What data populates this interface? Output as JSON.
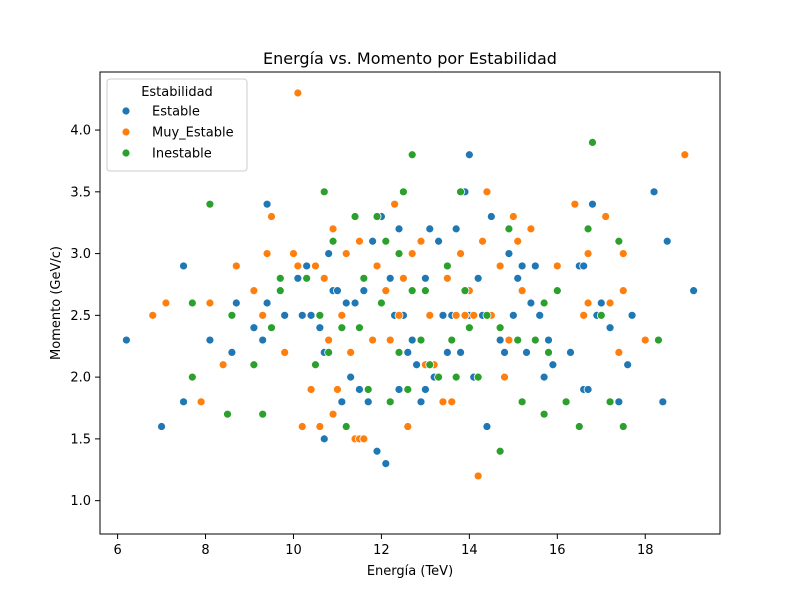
{
  "chart_data": {
    "type": "scatter",
    "title": "Energía vs. Momento por Estabilidad",
    "xlabel": "Energía (TeV)",
    "ylabel": "Momento (GeV/c)",
    "xlim": [
      5.6,
      19.7
    ],
    "ylim": [
      0.73,
      4.47
    ],
    "xticks": [
      6,
      8,
      10,
      12,
      14,
      16,
      18
    ],
    "yticks": [
      "1.0",
      "1.5",
      "2.0",
      "2.5",
      "3.0",
      "3.5",
      "4.0"
    ],
    "grid": false,
    "legend": {
      "title": "Estabilidad",
      "placement": "top-left"
    },
    "series": [
      {
        "name": "Estable",
        "color": "#1f77b4",
        "points": [
          [
            6.2,
            2.3
          ],
          [
            7.0,
            1.6
          ],
          [
            7.5,
            1.8
          ],
          [
            7.5,
            2.9
          ],
          [
            8.1,
            2.3
          ],
          [
            8.6,
            2.2
          ],
          [
            8.7,
            2.6
          ],
          [
            9.1,
            2.4
          ],
          [
            9.3,
            2.3
          ],
          [
            9.4,
            2.6
          ],
          [
            9.4,
            3.4
          ],
          [
            9.8,
            2.5
          ],
          [
            10.1,
            2.8
          ],
          [
            10.2,
            2.5
          ],
          [
            10.3,
            2.9
          ],
          [
            10.4,
            2.5
          ],
          [
            10.6,
            2.4
          ],
          [
            10.7,
            1.5
          ],
          [
            10.7,
            2.2
          ],
          [
            10.8,
            3.0
          ],
          [
            10.9,
            2.7
          ],
          [
            11.0,
            2.7
          ],
          [
            11.1,
            1.8
          ],
          [
            11.2,
            2.6
          ],
          [
            11.3,
            2.0
          ],
          [
            11.4,
            2.6
          ],
          [
            11.5,
            1.9
          ],
          [
            11.6,
            2.7
          ],
          [
            11.7,
            1.8
          ],
          [
            11.8,
            3.1
          ],
          [
            11.9,
            1.4
          ],
          [
            12.0,
            3.3
          ],
          [
            12.1,
            1.3
          ],
          [
            12.2,
            2.8
          ],
          [
            12.3,
            2.5
          ],
          [
            12.4,
            3.2
          ],
          [
            12.4,
            1.9
          ],
          [
            12.5,
            2.5
          ],
          [
            12.6,
            2.2
          ],
          [
            12.7,
            2.3
          ],
          [
            12.8,
            2.1
          ],
          [
            12.9,
            1.8
          ],
          [
            13.0,
            2.8
          ],
          [
            13.0,
            1.9
          ],
          [
            13.1,
            3.2
          ],
          [
            13.2,
            2.0
          ],
          [
            13.3,
            3.1
          ],
          [
            13.4,
            2.5
          ],
          [
            13.5,
            2.2
          ],
          [
            13.6,
            2.5
          ],
          [
            13.7,
            3.2
          ],
          [
            13.8,
            2.2
          ],
          [
            13.9,
            3.5
          ],
          [
            14.0,
            3.8
          ],
          [
            14.0,
            2.5
          ],
          [
            14.1,
            2.0
          ],
          [
            14.2,
            2.8
          ],
          [
            14.3,
            2.5
          ],
          [
            14.4,
            1.6
          ],
          [
            14.5,
            3.3
          ],
          [
            14.7,
            2.3
          ],
          [
            14.8,
            2.2
          ],
          [
            14.9,
            3.0
          ],
          [
            15.0,
            2.5
          ],
          [
            15.1,
            2.8
          ],
          [
            15.2,
            2.9
          ],
          [
            15.3,
            2.2
          ],
          [
            15.4,
            2.6
          ],
          [
            15.5,
            2.9
          ],
          [
            15.6,
            2.5
          ],
          [
            15.7,
            2.0
          ],
          [
            15.8,
            2.3
          ],
          [
            15.9,
            2.1
          ],
          [
            16.3,
            2.2
          ],
          [
            16.5,
            2.9
          ],
          [
            16.6,
            1.9
          ],
          [
            16.6,
            2.9
          ],
          [
            16.7,
            1.9
          ],
          [
            16.8,
            3.4
          ],
          [
            16.9,
            2.5
          ],
          [
            17.0,
            2.6
          ],
          [
            17.2,
            2.4
          ],
          [
            17.4,
            1.8
          ],
          [
            17.6,
            2.1
          ],
          [
            17.7,
            2.5
          ],
          [
            18.2,
            3.5
          ],
          [
            18.4,
            1.8
          ],
          [
            18.5,
            3.1
          ],
          [
            19.1,
            2.7
          ]
        ]
      },
      {
        "name": "Muy_Estable",
        "color": "#ff7f0e",
        "points": [
          [
            6.8,
            2.5
          ],
          [
            7.1,
            2.6
          ],
          [
            7.9,
            1.8
          ],
          [
            8.1,
            2.6
          ],
          [
            8.4,
            2.1
          ],
          [
            8.7,
            2.9
          ],
          [
            9.1,
            2.7
          ],
          [
            9.3,
            2.5
          ],
          [
            9.4,
            3.0
          ],
          [
            9.5,
            3.3
          ],
          [
            9.8,
            2.2
          ],
          [
            10.0,
            3.0
          ],
          [
            10.1,
            4.3
          ],
          [
            10.1,
            2.9
          ],
          [
            10.2,
            1.6
          ],
          [
            10.4,
            1.9
          ],
          [
            10.5,
            2.9
          ],
          [
            10.6,
            1.6
          ],
          [
            10.7,
            2.8
          ],
          [
            10.8,
            2.3
          ],
          [
            10.9,
            1.7
          ],
          [
            10.9,
            3.2
          ],
          [
            11.0,
            1.9
          ],
          [
            11.1,
            2.5
          ],
          [
            11.2,
            3.0
          ],
          [
            11.3,
            2.2
          ],
          [
            11.4,
            1.5
          ],
          [
            11.5,
            1.5
          ],
          [
            11.5,
            3.1
          ],
          [
            11.6,
            1.5
          ],
          [
            11.8,
            2.3
          ],
          [
            11.9,
            2.9
          ],
          [
            12.1,
            2.7
          ],
          [
            12.2,
            2.3
          ],
          [
            12.3,
            3.4
          ],
          [
            12.4,
            2.5
          ],
          [
            12.5,
            2.8
          ],
          [
            12.6,
            1.6
          ],
          [
            12.7,
            3.0
          ],
          [
            12.9,
            3.1
          ],
          [
            13.0,
            2.1
          ],
          [
            13.1,
            2.5
          ],
          [
            13.2,
            2.1
          ],
          [
            13.4,
            1.8
          ],
          [
            13.5,
            2.8
          ],
          [
            13.6,
            1.8
          ],
          [
            13.7,
            2.5
          ],
          [
            13.8,
            3.0
          ],
          [
            13.9,
            2.5
          ],
          [
            14.0,
            2.7
          ],
          [
            14.1,
            2.5
          ],
          [
            14.2,
            1.2
          ],
          [
            14.3,
            3.1
          ],
          [
            14.4,
            3.5
          ],
          [
            14.5,
            2.5
          ],
          [
            14.7,
            2.9
          ],
          [
            14.8,
            2.0
          ],
          [
            14.9,
            2.3
          ],
          [
            15.0,
            3.3
          ],
          [
            15.1,
            3.1
          ],
          [
            15.2,
            2.7
          ],
          [
            15.4,
            3.2
          ],
          [
            16.0,
            2.9
          ],
          [
            16.4,
            3.4
          ],
          [
            16.6,
            2.5
          ],
          [
            16.7,
            2.6
          ],
          [
            16.7,
            3.0
          ],
          [
            17.1,
            3.3
          ],
          [
            17.2,
            2.6
          ],
          [
            17.4,
            2.2
          ],
          [
            17.5,
            3.0
          ],
          [
            17.5,
            2.7
          ],
          [
            18.0,
            2.3
          ],
          [
            18.9,
            3.8
          ]
        ]
      },
      {
        "name": "Inestable",
        "color": "#2ca02c",
        "points": [
          [
            7.7,
            2.0
          ],
          [
            7.7,
            2.6
          ],
          [
            8.1,
            3.4
          ],
          [
            8.5,
            1.7
          ],
          [
            8.6,
            2.5
          ],
          [
            9.1,
            2.1
          ],
          [
            9.3,
            1.7
          ],
          [
            9.5,
            2.4
          ],
          [
            9.7,
            2.7
          ],
          [
            9.7,
            2.8
          ],
          [
            10.3,
            2.8
          ],
          [
            10.5,
            2.1
          ],
          [
            10.6,
            2.5
          ],
          [
            10.7,
            3.5
          ],
          [
            10.8,
            2.2
          ],
          [
            10.9,
            3.1
          ],
          [
            11.1,
            2.4
          ],
          [
            11.2,
            1.6
          ],
          [
            11.4,
            3.3
          ],
          [
            11.5,
            2.4
          ],
          [
            11.6,
            2.8
          ],
          [
            11.7,
            1.9
          ],
          [
            11.9,
            3.3
          ],
          [
            12.0,
            2.6
          ],
          [
            12.1,
            3.1
          ],
          [
            12.2,
            1.8
          ],
          [
            12.4,
            2.2
          ],
          [
            12.4,
            3.0
          ],
          [
            12.5,
            3.5
          ],
          [
            12.6,
            1.9
          ],
          [
            12.7,
            2.7
          ],
          [
            12.7,
            3.8
          ],
          [
            12.9,
            2.3
          ],
          [
            13.0,
            2.7
          ],
          [
            13.1,
            2.1
          ],
          [
            13.3,
            2.0
          ],
          [
            13.5,
            2.9
          ],
          [
            13.6,
            2.3
          ],
          [
            13.7,
            2.0
          ],
          [
            13.8,
            3.5
          ],
          [
            13.9,
            2.7
          ],
          [
            14.0,
            2.4
          ],
          [
            14.2,
            2.0
          ],
          [
            14.4,
            2.5
          ],
          [
            14.7,
            2.4
          ],
          [
            14.7,
            1.4
          ],
          [
            14.9,
            3.2
          ],
          [
            15.1,
            2.3
          ],
          [
            15.2,
            1.8
          ],
          [
            15.5,
            2.3
          ],
          [
            15.7,
            2.6
          ],
          [
            15.7,
            1.7
          ],
          [
            15.8,
            2.2
          ],
          [
            16.0,
            2.7
          ],
          [
            16.2,
            1.8
          ],
          [
            16.5,
            1.6
          ],
          [
            16.7,
            3.2
          ],
          [
            16.8,
            3.9
          ],
          [
            17.0,
            2.5
          ],
          [
            17.2,
            1.8
          ],
          [
            17.4,
            3.1
          ],
          [
            17.5,
            1.6
          ],
          [
            18.3,
            2.3
          ]
        ]
      }
    ]
  }
}
